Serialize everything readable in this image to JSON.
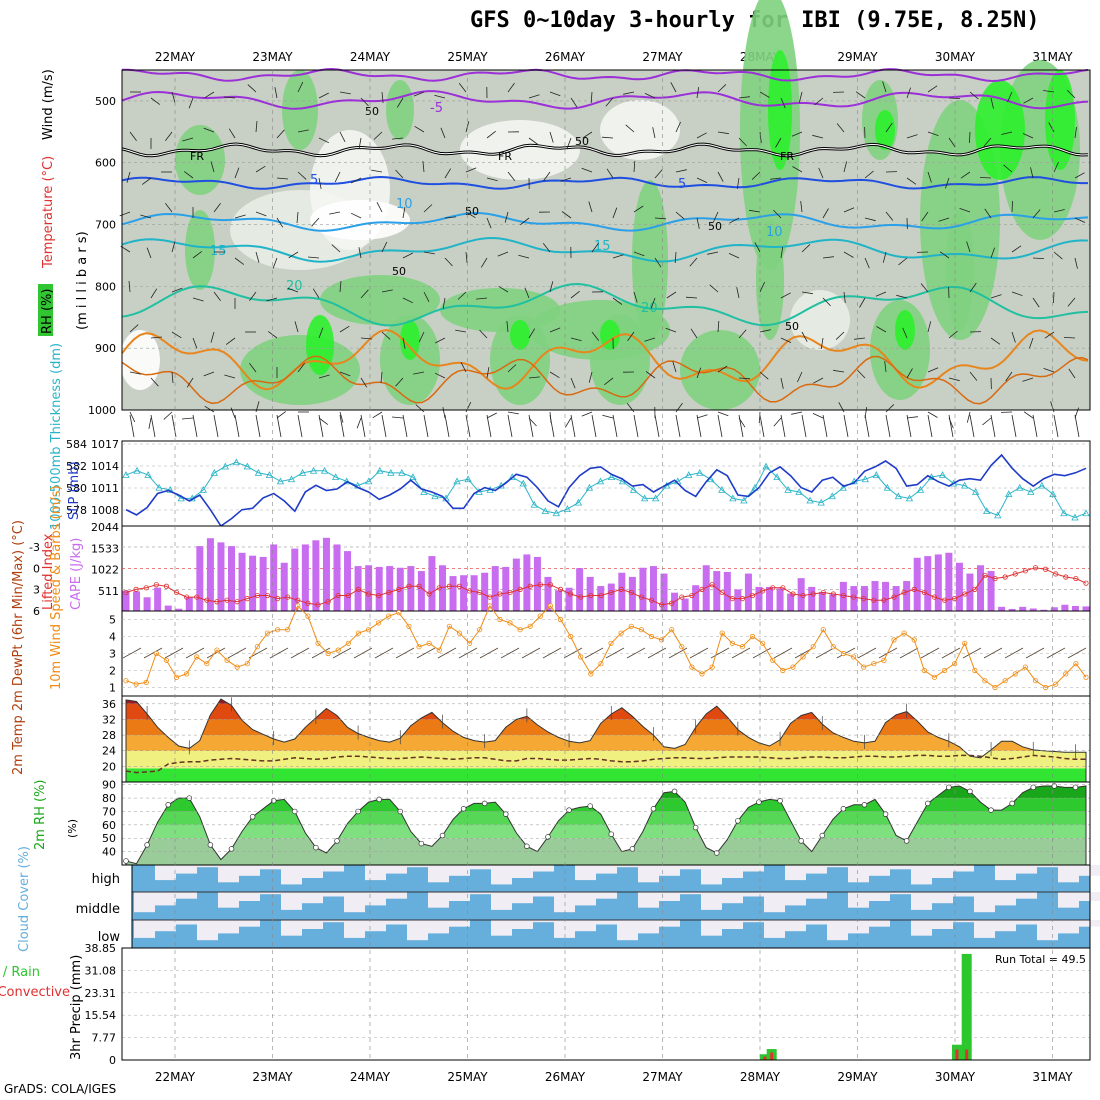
{
  "title": "GFS 0~10day 3-hourly for IBI (9.75E, 8.25N)",
  "credit": "GrADS: COLA/IGES",
  "dates": [
    "22MAY",
    "23MAY",
    "24MAY",
    "25MAY",
    "26MAY",
    "27MAY",
    "28MAY",
    "29MAY",
    "30MAY",
    "31MAY"
  ],
  "colors": {
    "rh_green": "#31c631",
    "cape": "#c86cf0",
    "li": "#e03030",
    "wind": "#f08c14",
    "thickness": "#2ab4c8",
    "slp": "#1f3cc8",
    "cloud": "#66aedb",
    "precip_total": "#2cc72c",
    "precip_conv": "#e03030"
  },
  "chart_data": [
    {
      "type": "heatmap",
      "name": "upper",
      "ylabels": [
        "(m i l l i b a r s)",
        "Wind (m/s)",
        "Temperature (°C)",
        "RH (%)"
      ],
      "yticks": [
        "500",
        "600",
        "700",
        "800",
        "900",
        "1000"
      ],
      "ylim": [
        1000,
        450
      ],
      "contour_labels": {
        "freezing": [
          "FR",
          "FR",
          "FR"
        ],
        "temperature": [
          "-5",
          "5",
          "5",
          "10",
          "10",
          "15",
          "15",
          "20",
          "20"
        ],
        "rh": [
          "50",
          "50",
          "50",
          "50",
          "50",
          "50"
        ]
      }
    },
    {
      "type": "line",
      "name": "thickness-slp",
      "ylabel_left": "1000-500mb Thickness (dm)",
      "ylabel_right": "SLP (mb)",
      "yticks_left": [
        "584",
        "582",
        "580",
        "578"
      ],
      "yticks_right": [
        "1017",
        "1014",
        "1011",
        "1008"
      ],
      "series": [
        {
          "name": "Thickness",
          "axis": "left",
          "values": [
            581.8,
            582.2,
            581.8,
            580.6,
            580.4,
            579.6,
            579.6,
            580.4,
            582.0,
            582.6,
            583.0,
            582.6,
            582.0,
            581.8,
            581.2,
            581.4,
            582.0,
            582.2,
            582.2,
            581.6,
            581.2,
            580.8,
            581.2,
            582.2,
            582.0,
            582.0,
            581.6,
            580.2,
            579.8,
            579.6,
            581.2,
            581.4,
            580.2,
            580.4,
            580.8,
            581.6,
            581.0,
            579.0,
            578.4,
            578.2,
            578.6,
            579.2,
            580.6,
            581.2,
            581.6,
            581.2,
            580.4,
            579.6,
            579.6,
            580.8,
            581.2,
            581.8,
            582.0,
            581.4,
            580.4,
            579.6,
            579.4,
            580.6,
            582.6,
            581.6,
            580.4,
            580.2,
            579.4,
            579.2,
            579.8,
            580.6,
            581.2,
            581.4,
            581.8,
            580.6,
            579.8,
            579.6,
            580.4,
            581.6,
            581.8,
            581.0,
            580.8,
            580.2,
            578.4,
            578.0,
            580.0,
            580.6,
            580.2,
            580.8,
            580.0,
            578.2,
            577.8,
            578.2
          ]
        },
        {
          "name": "SLP",
          "axis": "right",
          "values": [
            1008.2,
            1007.5,
            1008.5,
            1010.4,
            1010.8,
            1010.2,
            1009.4,
            1010.2,
            1008.2,
            1006.0,
            1007.0,
            1008.2,
            1008.4,
            1009.8,
            1010.4,
            1009.4,
            1008.0,
            1010.6,
            1011.5,
            1010.8,
            1011.0,
            1012.0,
            1011.2,
            1010.6,
            1009.6,
            1010.2,
            1011.0,
            1012.2,
            1011.0,
            1010.6,
            1010.0,
            1008.4,
            1008.4,
            1010.4,
            1011.2,
            1010.8,
            1011.8,
            1013.0,
            1012.6,
            1011.2,
            1009.4,
            1008.6,
            1011.2,
            1012.8,
            1013.8,
            1014.0,
            1013.0,
            1012.4,
            1011.4,
            1011.6,
            1010.6,
            1011.4,
            1012.2,
            1010.8,
            1010.0,
            1012.0,
            1013.6,
            1012.8,
            1010.2,
            1010.0,
            1011.2,
            1013.2,
            1014.0,
            1012.8,
            1011.2,
            1010.6,
            1012.2,
            1012.6,
            1011.4,
            1011.8,
            1013.4,
            1014.0,
            1014.8,
            1013.8,
            1011.4,
            1011.6,
            1012.8,
            1012.0,
            1011.4,
            1012.2,
            1012.4,
            1012.2,
            1014.2,
            1015.6,
            1013.8,
            1012.4,
            1011.4,
            1012.4,
            1013.0,
            1012.8,
            1013.2,
            1013.8
          ]
        }
      ]
    },
    {
      "type": "bar",
      "name": "cape-li",
      "ylabel_left": "Lifted Index",
      "ylabel_right": "CAPE (J/kg)",
      "yticks_left": [
        "-3",
        "0",
        "3",
        "6"
      ],
      "yticks_right": [
        "2044",
        "1533",
        "1022",
        "511"
      ],
      "series": [
        {
          "name": "CAPE",
          "axis": "right",
          "values": [
            490,
            470,
            330,
            560,
            130,
            55,
            330,
            1560,
            1750,
            1650,
            1560,
            1400,
            1330,
            1300,
            1600,
            1160,
            1500,
            1600,
            1700,
            1760,
            1600,
            1440,
            1080,
            1100,
            1060,
            1080,
            1040,
            1080,
            960,
            1320,
            1100,
            840,
            860,
            860,
            920,
            1080,
            1060,
            1260,
            1360,
            1300,
            820,
            500,
            560,
            1030,
            820,
            600,
            660,
            920,
            820,
            1040,
            1080,
            900,
            440,
            300,
            620,
            1100,
            960,
            940,
            520,
            900,
            580,
            580,
            540,
            420,
            790,
            580,
            460,
            400,
            700,
            600,
            600,
            720,
            700,
            600,
            720,
            1280,
            1320,
            1360,
            1400,
            1160,
            900,
            1100,
            960,
            100,
            50,
            100,
            60,
            30,
            90,
            150,
            120,
            110
          ]
        },
        {
          "name": "Lifted Index",
          "axis": "left",
          "values": [
            -2.6,
            -2.2,
            -2.0,
            -1.6,
            -1.8,
            -2.6,
            -3.2,
            -3.2,
            -3.6,
            -3.8,
            -3.6,
            -3.8,
            -3.4,
            -3.0,
            -3.0,
            -3.4,
            -3.2,
            -3.6,
            -4.0,
            -4.2,
            -3.8,
            -3.0,
            -3.0,
            -2.2,
            -2.8,
            -3.0,
            -2.6,
            -2.2,
            -1.8,
            -1.8,
            -2.8,
            -2.0,
            -1.8,
            -1.8,
            -2.4,
            -2.6,
            -3.2,
            -2.8,
            -2.6,
            -2.2,
            -1.8,
            -1.6,
            -1.6,
            -2.2,
            -2.8,
            -3.2,
            -3.0,
            -3.0,
            -2.6,
            -2.2,
            -2.6,
            -3.2,
            -3.6,
            -4.2,
            -4.0,
            -3.2,
            -3.0,
            -2.2,
            -1.6,
            -2.6,
            -3.4,
            -3.4,
            -3.0,
            -2.4,
            -2.0,
            -2.0,
            -2.8,
            -3.0,
            -2.8,
            -2.6,
            -2.8,
            -3.0,
            -3.2,
            -3.4,
            -3.6,
            -3.6,
            -3.2,
            -2.6,
            -2.2,
            -2.6,
            -3.2,
            -3.6,
            -3.4,
            -2.8,
            -2.2,
            -0.4,
            -0.8,
            -0.6,
            -0.2,
            0.2,
            0.6,
            0.4,
            -0.2,
            -0.6,
            -0.8,
            -1.4
          ]
        }
      ]
    },
    {
      "type": "line",
      "name": "wind",
      "ylabel": "10m Wind Speed & Barbs (m/s)",
      "yticks": [
        "5",
        "4",
        "3",
        "2",
        "1"
      ],
      "ylim": [
        0.5,
        5.5
      ],
      "series": [
        {
          "name": "Speed",
          "values": [
            1.4,
            1.2,
            1.3,
            3.0,
            2.6,
            1.6,
            1.8,
            2.8,
            2.4,
            3.2,
            2.6,
            2.2,
            2.4,
            3.4,
            4.2,
            4.4,
            4.4,
            5.8,
            5.2,
            3.6,
            3.0,
            3.2,
            3.6,
            4.2,
            4.4,
            4.8,
            5.2,
            5.4,
            4.6,
            3.4,
            3.6,
            3.2,
            4.6,
            4.2,
            3.6,
            4.4,
            5.8,
            5.0,
            4.8,
            4.4,
            4.6,
            5.2,
            5.8,
            5.0,
            4.0,
            2.8,
            1.8,
            2.4,
            3.6,
            4.2,
            4.6,
            4.4,
            4.0,
            3.8,
            4.4,
            3.4,
            2.2,
            1.8,
            2.2,
            4.2,
            3.6,
            3.4,
            4.0,
            3.6,
            2.6,
            2.0,
            2.2,
            2.8,
            3.4,
            4.4,
            3.4,
            3.0,
            2.8,
            2.2,
            2.4,
            2.6,
            3.8,
            4.2,
            3.8,
            2.0,
            1.6,
            2.0,
            2.4,
            3.6,
            2.0,
            1.4,
            1.0,
            1.4,
            1.8,
            2.2,
            1.4,
            1.0,
            1.2,
            1.8,
            2.4,
            1.6
          ]
        }
      ]
    },
    {
      "type": "area",
      "name": "temperature",
      "ylabel": "2m Temp 2m DewPt (6hr Min/Max) (°C)",
      "yticks": [
        "36",
        "32",
        "28",
        "24",
        "20"
      ],
      "ylim": [
        16,
        38
      ],
      "series": [
        {
          "name": "Temperature",
          "values": [
            37.0,
            36.6,
            33.4,
            30.0,
            27.4,
            25.2,
            24.6,
            26.6,
            33.2,
            37.2,
            35.6,
            31.8,
            29.4,
            28.2,
            27.0,
            26.2,
            27.0,
            30.0,
            32.4,
            34.8,
            33.0,
            30.0,
            28.4,
            27.4,
            26.6,
            26.2,
            27.2,
            30.4,
            32.4,
            33.8,
            31.2,
            29.0,
            27.4,
            26.6,
            26.2,
            26.6,
            30.0,
            32.0,
            32.8,
            30.6,
            28.8,
            27.4,
            26.4,
            26.0,
            26.6,
            31.0,
            33.4,
            35.0,
            32.8,
            30.2,
            28.0,
            25.0,
            24.6,
            25.6,
            30.0,
            33.4,
            35.4,
            32.6,
            29.4,
            27.4,
            26.0,
            25.2,
            26.8,
            31.0,
            33.0,
            33.8,
            30.8,
            28.6,
            27.4,
            26.4,
            26.0,
            26.4,
            31.2,
            33.2,
            34.0,
            31.6,
            28.8,
            27.4,
            26.4,
            25.0,
            22.6,
            22.2,
            24.2,
            26.4,
            26.4,
            25.0,
            24.2,
            24.0,
            23.8,
            23.6,
            23.6,
            23.6
          ]
        },
        {
          "name": "Dew Point",
          "values": [
            18.8,
            18.4,
            18.6,
            18.8,
            20.6,
            21.0,
            21.2,
            21.2,
            21.6,
            21.8,
            22.0,
            21.8,
            21.6,
            21.4,
            21.4,
            21.8,
            22.2,
            22.0,
            21.8,
            22.0,
            22.4,
            22.6,
            22.6,
            22.4,
            22.2,
            22.0,
            22.0,
            22.2,
            22.4,
            22.2,
            22.0,
            21.8,
            22.0,
            22.2,
            22.2,
            21.8,
            21.4,
            21.4,
            22.0,
            22.0,
            21.8,
            21.6,
            21.6,
            21.8,
            22.0,
            21.8,
            21.4,
            21.2,
            21.2,
            21.4,
            21.8,
            22.0,
            22.2,
            22.2,
            22.0,
            22.0,
            22.2,
            22.4,
            22.4,
            22.4,
            22.4,
            22.2,
            22.0,
            22.0,
            22.2,
            22.4,
            22.4,
            22.2,
            22.2,
            22.4,
            22.6,
            22.6,
            22.4,
            22.4,
            22.6,
            22.8,
            22.8,
            22.6,
            22.6,
            22.8,
            22.8,
            22.6,
            22.2,
            21.8,
            22.0,
            22.4,
            22.8,
            22.6,
            22.4,
            22.0,
            21.8,
            21.8
          ]
        }
      ]
    },
    {
      "type": "area",
      "name": "rh",
      "ylabel": "2m RH (%)",
      "yticks": [
        "90",
        "80",
        "70",
        "60",
        "50",
        "40"
      ],
      "ylim": [
        30,
        92
      ],
      "series": [
        {
          "name": "RH",
          "values": [
            33,
            31,
            45,
            62,
            75,
            80,
            80,
            66,
            45,
            34,
            42,
            55,
            66,
            72,
            78,
            79,
            70,
            54,
            43,
            39,
            48,
            61,
            70,
            77,
            79,
            79,
            70,
            55,
            46,
            44,
            52,
            64,
            72,
            76,
            76,
            77,
            68,
            54,
            44,
            40,
            51,
            63,
            71,
            73,
            74,
            68,
            53,
            40,
            42,
            55,
            72,
            84,
            85,
            77,
            58,
            43,
            39,
            49,
            63,
            73,
            77,
            79,
            78,
            63,
            48,
            40,
            52,
            64,
            72,
            75,
            75,
            79,
            68,
            52,
            48,
            62,
            76,
            82,
            88,
            89,
            85,
            77,
            71,
            71,
            76,
            84,
            88,
            89,
            89,
            88,
            88,
            89
          ]
        }
      ]
    },
    {
      "type": "bar",
      "name": "cloud",
      "ylabel": "Cloud Cover (%)",
      "ycategories": [
        "high",
        "middle",
        "low"
      ]
    },
    {
      "type": "bar",
      "name": "precip",
      "ylabel": "3hr Precip (mm)",
      "legend": [
        "Total / Rain",
        "Convective"
      ],
      "run_total": "Run Total = 49.5",
      "yticks": [
        "38.85",
        "31.08",
        "23.31",
        "15.54",
        "7.77",
        "0"
      ],
      "ylim": [
        0,
        38.85
      ],
      "bars": [
        {
          "date_index": 6.05,
          "total": 2.0,
          "convective": 1.2
        },
        {
          "date_index": 6.12,
          "total": 3.8,
          "convective": 2.6
        },
        {
          "date_index": 8.02,
          "total": 5.3,
          "convective": 3.6
        },
        {
          "date_index": 8.12,
          "total": 36.8,
          "convective": 3.6
        }
      ]
    }
  ]
}
